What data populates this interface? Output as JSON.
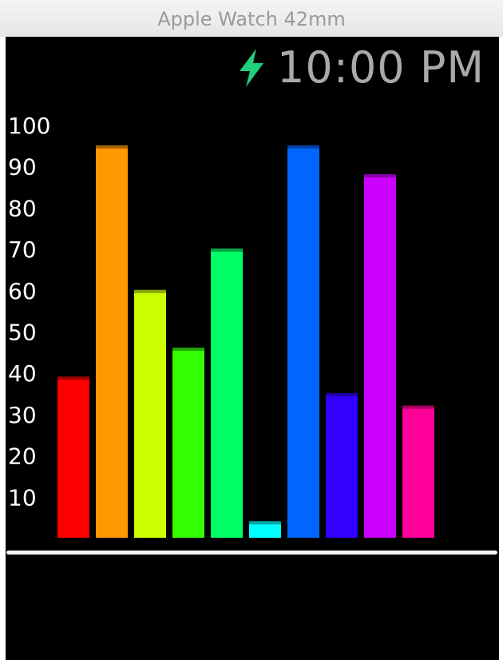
{
  "window": {
    "title": "Apple Watch 42mm"
  },
  "status": {
    "time": "10:00 PM",
    "charging_icon": "bolt-icon",
    "charging_color": "#1fd07a"
  },
  "chart_data": {
    "type": "bar",
    "title": "",
    "xlabel": "",
    "ylabel": "",
    "ylim": [
      0,
      100
    ],
    "yticks": [
      10,
      20,
      30,
      40,
      50,
      60,
      70,
      80,
      90,
      100
    ],
    "grid": false,
    "legend": "none",
    "categories": [
      "",
      "",
      "",
      "",
      "",
      "",
      "",
      "",
      "",
      ""
    ],
    "values": [
      39,
      95,
      60,
      46,
      70,
      4,
      95,
      35,
      88,
      32
    ],
    "colors": [
      "#ff0000",
      "#ff9900",
      "#ccff00",
      "#33ff00",
      "#00ff66",
      "#00ffff",
      "#0066ff",
      "#3300ff",
      "#cc00ff",
      "#ff0099"
    ]
  }
}
